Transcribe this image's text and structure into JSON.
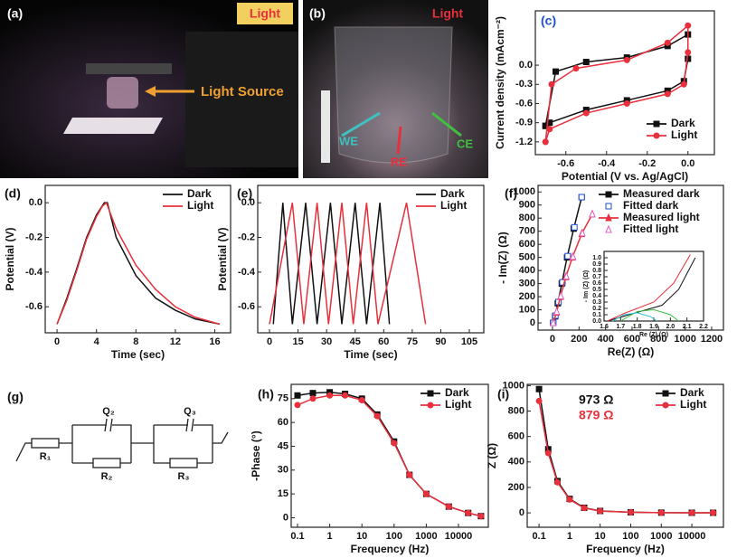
{
  "chart_data": [
    {
      "type": "line",
      "panel": "(c)",
      "xlabel": "Potential (V vs. Ag/AgCl)",
      "ylabel": "Current density (mAcm⁻²)",
      "xlim": [
        -0.75,
        0.13
      ],
      "ylim": [
        -1.4,
        0.85
      ],
      "xticks": [
        -0.6,
        -0.4,
        -0.2,
        {
          "value": 0,
          "label": "0.0"
        }
      ],
      "yticks": [
        {
          "value": 0,
          "label": "0.0"
        },
        -0.3,
        -0.6,
        -0.9,
        -1.2
      ],
      "legend": "lower right",
      "series": [
        {
          "name": "Dark",
          "color": "#111111",
          "marker": "square",
          "line": true,
          "x": [
            -0.7,
            -0.65,
            -0.5,
            -0.3,
            -0.1,
            0,
            0,
            -0.02,
            -0.1,
            -0.3,
            -0.5,
            -0.68,
            -0.7
          ],
          "values": [
            -0.95,
            -0.1,
            0.05,
            0.12,
            0.3,
            0.48,
            0.1,
            -0.25,
            -0.4,
            -0.55,
            -0.7,
            -0.9,
            -0.95
          ]
        },
        {
          "name": "Light",
          "color": "#e8303c",
          "marker": "circle",
          "line": true,
          "x": [
            -0.7,
            -0.67,
            -0.55,
            -0.3,
            -0.1,
            0,
            0,
            -0.02,
            -0.1,
            -0.3,
            -0.5,
            -0.68,
            -0.7
          ],
          "values": [
            -1.2,
            -0.3,
            -0.05,
            0.08,
            0.35,
            0.62,
            0.2,
            -0.3,
            -0.45,
            -0.6,
            -0.75,
            -1.0,
            -1.2
          ]
        }
      ]
    },
    {
      "type": "line",
      "panel": "(d)",
      "xlabel": "Time (sec)",
      "ylabel": "Potential (V)",
      "xlim": [
        -1.2,
        17.6
      ],
      "ylim": [
        -0.75,
        0.1
      ],
      "xticks": [
        0,
        4,
        8,
        12,
        16
      ],
      "yticks": [
        {
          "value": 0,
          "label": "0.0"
        },
        -0.2,
        -0.4,
        -0.6
      ],
      "legend": "upper right",
      "series": [
        {
          "name": "Dark",
          "color": "#111111",
          "marker": "none",
          "line": true,
          "x": [
            0,
            1,
            2,
            3,
            4,
            4.8,
            5.1,
            6,
            8,
            10,
            12,
            14,
            16.5
          ],
          "values": [
            -0.7,
            -0.55,
            -0.38,
            -0.2,
            -0.07,
            0,
            0,
            -0.2,
            -0.42,
            -0.55,
            -0.62,
            -0.67,
            -0.7
          ]
        },
        {
          "name": "Light",
          "color": "#e8303c",
          "marker": "none",
          "line": true,
          "x": [
            0,
            1,
            2,
            3,
            4,
            4.6,
            5,
            6,
            8,
            10,
            12,
            14,
            16.5
          ],
          "values": [
            -0.7,
            -0.56,
            -0.39,
            -0.21,
            -0.08,
            -0.02,
            0,
            -0.15,
            -0.36,
            -0.5,
            -0.6,
            -0.66,
            -0.7
          ]
        }
      ]
    },
    {
      "type": "line",
      "panel": "(e)",
      "xlabel": "Time (sec)",
      "ylabel": "Potential (V)",
      "xlim": [
        -6.2,
        112.6
      ],
      "ylim": [
        -0.75,
        0.1
      ],
      "xticks": [
        0,
        15,
        30,
        45,
        60,
        75,
        90,
        105
      ],
      "yticks": [
        {
          "value": 0,
          "label": "0.0"
        },
        -0.2,
        -0.4,
        -0.6
      ],
      "legend": "upper right",
      "series": [
        {
          "name": "Dark",
          "color": "#111111",
          "marker": "none",
          "line": true,
          "x": [
            2,
            7,
            12,
            19,
            25,
            32,
            38,
            45,
            51,
            58,
            63
          ],
          "values": [
            -0.7,
            0,
            -0.7,
            0,
            -0.7,
            0,
            -0.7,
            0,
            -0.7,
            0,
            -0.7
          ]
        },
        {
          "name": "Light",
          "color": "#e8303c",
          "marker": "none",
          "line": true,
          "x": [
            0,
            12,
            18,
            25,
            31,
            38,
            44,
            51,
            57,
            72,
            82
          ],
          "values": [
            -0.7,
            0,
            -0.7,
            0,
            -0.7,
            0,
            -0.7,
            0,
            -0.7,
            0,
            -0.7
          ]
        }
      ]
    },
    {
      "type": "line",
      "panel": "(f)",
      "xlabel": "Re(Z) (Ω)",
      "ylabel": "- Im(Z) (Ω)",
      "xlim": [
        -109,
        1289
      ],
      "ylim": [
        -55,
        1050
      ],
      "xticks": [
        0,
        200,
        400,
        600,
        800,
        1000,
        1200
      ],
      "yticks": [
        0,
        100,
        200,
        300,
        400,
        500,
        600,
        700,
        800,
        900,
        1000
      ],
      "legend": "upper right",
      "series": [
        {
          "name": "Measured dark",
          "color": "#111111",
          "marker": "square",
          "line": true,
          "x": [
            5,
            20,
            40,
            70,
            110,
            160,
            220
          ],
          "values": [
            0,
            50,
            150,
            300,
            500,
            720,
            960
          ]
        },
        {
          "name": "Fitted dark",
          "color": "#1a4fd6",
          "marker": "square",
          "open": true,
          "line": false,
          "x": [
            5,
            22,
            45,
            75,
            115,
            165,
            220
          ],
          "values": [
            0,
            55,
            160,
            310,
            510,
            730,
            960
          ]
        },
        {
          "name": "Measured light",
          "color": "#e8303c",
          "marker": "triangle",
          "line": true,
          "x": [
            5,
            30,
            60,
            100,
            150,
            220,
            300
          ],
          "values": [
            0,
            80,
            200,
            350,
            500,
            680,
            830
          ]
        },
        {
          "name": "Fitted light",
          "color": "#e060c0",
          "marker": "triangle",
          "open": true,
          "line": false,
          "x": [
            5,
            32,
            63,
            105,
            155,
            225,
            300
          ],
          "values": [
            0,
            85,
            205,
            355,
            505,
            685,
            830
          ]
        }
      ]
    },
    {
      "type": "line",
      "inset": true,
      "xlabel": "Re (Z) (Ω)",
      "ylabel": "- Im (Z) (Ω)",
      "xlim": [
        1.6,
        2.2
      ],
      "ylim": [
        0,
        1.1
      ],
      "xticks": [
        1.6,
        1.7,
        1.8,
        1.9,
        {
          "value": 2,
          "label": "2.0"
        },
        2.1,
        2.2
      ],
      "yticks": [
        {
          "value": 0,
          "label": "0.0"
        },
        0.1,
        0.2,
        0.3,
        0.4,
        0.5,
        0.6,
        0.7,
        0.8,
        0.9,
        {
          "value": 1,
          "label": "1.0"
        }
      ],
      "series": [
        {
          "color": "#111111",
          "marker": "none",
          "line": true,
          "x": [
            1.62,
            1.75,
            1.95,
            2.05,
            2.15
          ],
          "values": [
            0,
            0.1,
            0.25,
            0.5,
            1.0
          ]
        },
        {
          "color": "#e8303c",
          "marker": "none",
          "line": true,
          "x": [
            1.62,
            1.72,
            1.9,
            2.02,
            2.12
          ],
          "values": [
            0,
            0.12,
            0.3,
            0.6,
            1.05
          ]
        },
        {
          "color": "#3ac040",
          "marker": "none",
          "line": true,
          "x": [
            1.7,
            1.8,
            1.9,
            2.0,
            2.05
          ],
          "values": [
            0,
            0.15,
            0.18,
            0.1,
            0
          ]
        },
        {
          "color": "#30c0d0",
          "marker": "none",
          "line": true,
          "x": [
            1.65,
            1.72,
            1.8,
            1.88,
            1.92
          ],
          "values": [
            0,
            0.1,
            0.13,
            0.07,
            0
          ]
        }
      ]
    },
    {
      "type": "line",
      "panel": "(h)",
      "xlabel": "Frequency (Hz)",
      "ylabel": "-Phase (°)",
      "xscale": "log",
      "xlim": [
        0.0636,
        84500
      ],
      "ylim": [
        -6,
        84
      ],
      "xticks": [
        0.1,
        1,
        10,
        100,
        1000,
        10000
      ],
      "yticks": [
        0,
        15,
        30,
        45,
        60,
        75
      ],
      "legend": "upper right",
      "series": [
        {
          "name": "Dark",
          "color": "#111111",
          "marker": "square",
          "line": true,
          "x": [
            0.1,
            0.3,
            1,
            3,
            10,
            30,
            100,
            300,
            1000,
            5000,
            20000,
            50000
          ],
          "values": [
            77,
            78.5,
            79,
            78,
            75,
            65,
            48,
            27,
            15,
            7,
            3,
            1
          ]
        },
        {
          "name": "Light",
          "color": "#e8303c",
          "marker": "circle",
          "line": true,
          "x": [
            0.1,
            0.3,
            1,
            3,
            10,
            30,
            100,
            300,
            1000,
            5000,
            20000,
            50000
          ],
          "values": [
            71,
            75,
            77,
            77,
            74,
            64,
            47,
            27,
            15,
            7,
            3,
            1
          ]
        }
      ]
    },
    {
      "type": "line",
      "panel": "(i)",
      "xlabel": "Frequency (Hz)",
      "ylabel": "Z (Ω)",
      "xscale": "log",
      "xlim": [
        0.041,
        108000
      ],
      "ylim": [
        -113,
        1010
      ],
      "xticks": [
        0.1,
        1,
        10,
        100,
        1000,
        10000
      ],
      "yticks": [
        0,
        200,
        400,
        600,
        800,
        1000
      ],
      "legend": "upper right",
      "annotations": [
        {
          "text": "973 Ω",
          "color": "#111111"
        },
        {
          "text": "879 Ω",
          "color": "#e8303c"
        }
      ],
      "series": [
        {
          "name": "Dark",
          "color": "#111111",
          "marker": "square",
          "line": true,
          "x": [
            0.1,
            0.2,
            0.4,
            1,
            3,
            10,
            100,
            1000,
            10000,
            50000
          ],
          "values": [
            973,
            500,
            250,
            110,
            40,
            15,
            5,
            2,
            1,
            1
          ]
        },
        {
          "name": "Light",
          "color": "#e8303c",
          "marker": "circle",
          "line": true,
          "x": [
            0.1,
            0.2,
            0.4,
            1,
            3,
            10,
            100,
            1000,
            10000,
            50000
          ],
          "values": [
            879,
            470,
            240,
            105,
            38,
            14,
            5,
            2,
            1,
            1
          ]
        }
      ]
    }
  ],
  "photos": [
    {
      "panel": "(a)",
      "light": "Light",
      "labels": [
        "Light Source"
      ]
    },
    {
      "panel": "(b)",
      "light": "Light",
      "labels": [
        "WE",
        "RE",
        "CE"
      ]
    }
  ],
  "circuit": {
    "panel": "(g)",
    "elements": [
      "R₁",
      "Q₂",
      "R₂",
      "Q₃",
      "R₃"
    ]
  }
}
